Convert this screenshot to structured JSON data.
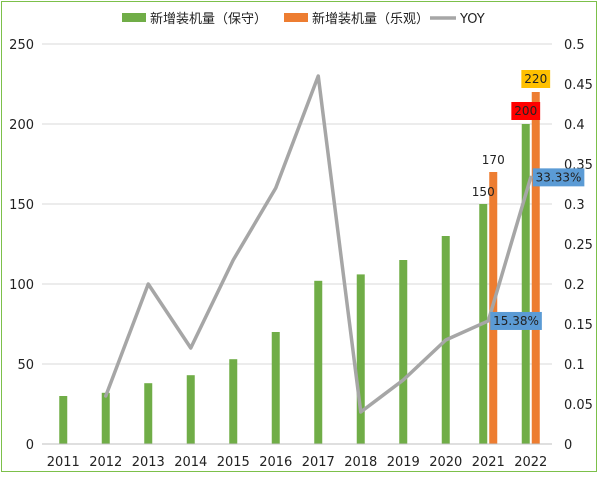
{
  "chart_data": {
    "type": "bar+line",
    "categories": [
      "2011",
      "2012",
      "2013",
      "2014",
      "2015",
      "2016",
      "2017",
      "2018",
      "2019",
      "2020",
      "2021",
      "2022"
    ],
    "series": [
      {
        "name": "新增装机量（保守）",
        "type": "bar",
        "axis": "left",
        "color": "#70ad47",
        "values": [
          30,
          32,
          38,
          43,
          53,
          70,
          102,
          106,
          115,
          130,
          150,
          200
        ]
      },
      {
        "name": "新增装机量（乐观）",
        "type": "bar",
        "axis": "left",
        "color": "#ed7d31",
        "values": [
          null,
          null,
          null,
          null,
          null,
          null,
          null,
          null,
          null,
          null,
          170,
          220
        ]
      },
      {
        "name": "YOY",
        "type": "line",
        "axis": "right",
        "color": "#a6a6a6",
        "values": [
          null,
          0.06,
          0.2,
          0.12,
          0.23,
          0.32,
          0.46,
          0.04,
          0.08,
          0.13,
          0.1538,
          0.3333
        ]
      }
    ],
    "left_axis": {
      "min": 0,
      "max": 250,
      "ticks": [
        "0",
        "50",
        "100",
        "150",
        "200",
        "250"
      ]
    },
    "right_axis": {
      "min": 0,
      "max": 0.5,
      "ticks": [
        "0",
        "0.05",
        "0.1",
        "0.15",
        "0.2",
        "0.25",
        "0.3",
        "0.35",
        "0.4",
        "0.45",
        "0.5"
      ]
    },
    "grid": true,
    "legend_position": "top",
    "annotations": [
      {
        "text": "150",
        "category": "2021",
        "series": 0,
        "style": "plain"
      },
      {
        "text": "170",
        "category": "2021",
        "series": 1,
        "style": "plain"
      },
      {
        "text": "200",
        "category": "2022",
        "series": 0,
        "style": "box",
        "bg": "#ff0000"
      },
      {
        "text": "220",
        "category": "2022",
        "series": 1,
        "style": "box",
        "bg": "#ffc000"
      },
      {
        "text": "15.38%",
        "category": "2021",
        "series": 2,
        "style": "box",
        "bg": "#5b9bd5"
      },
      {
        "text": "33.33%",
        "category": "2022",
        "series": 2,
        "style": "box",
        "bg": "#5b9bd5"
      }
    ]
  }
}
